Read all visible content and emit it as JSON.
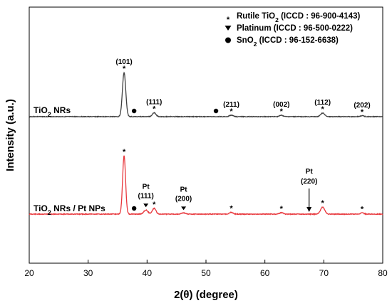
{
  "chart_data": {
    "type": "line",
    "xlabel": "2(θ) (degree)",
    "ylabel": "Intensity (a.u.)",
    "xlim": [
      20,
      80
    ],
    "x_ticks": [
      "20",
      "30",
      "40",
      "50",
      "60",
      "70",
      "80"
    ],
    "legend": {
      "placement": "top-right",
      "entries": [
        {
          "marker": "star",
          "text": "Rutile TiO",
          "sub": "2",
          "text_after": " (ICCD : 96-900-4143)"
        },
        {
          "marker": "triangle-down",
          "text": "Platinum (ICCD : 96-500-0222)",
          "sub": "",
          "text_after": ""
        },
        {
          "marker": "circle",
          "text": "SnO",
          "sub": "2",
          "text_after": " (ICCD : 96-152-6638)"
        }
      ]
    },
    "series": [
      {
        "name_main": "TiO",
        "name_sub": "2",
        "name_after": " NRs",
        "color": "#404040",
        "baseline": 0.0,
        "peaks": [
          {
            "x": 36.1,
            "h": 1.0,
            "w": 0.28
          },
          {
            "x": 41.2,
            "h": 0.09,
            "w": 0.3
          },
          {
            "x": 54.3,
            "h": 0.035,
            "w": 0.3
          },
          {
            "x": 62.8,
            "h": 0.03,
            "w": 0.3
          },
          {
            "x": 69.8,
            "h": 0.08,
            "w": 0.35
          },
          {
            "x": 76.5,
            "h": 0.02,
            "w": 0.3
          }
        ],
        "annotations": [
          {
            "x": 36.1,
            "phase": "rutile",
            "label": "(101)"
          },
          {
            "x": 41.2,
            "phase": "rutile",
            "label": "(111)"
          },
          {
            "x": 54.3,
            "phase": "rutile",
            "label": "(211)"
          },
          {
            "x": 62.8,
            "phase": "rutile",
            "label": "(002)"
          },
          {
            "x": 69.8,
            "phase": "rutile",
            "label": "(112)"
          },
          {
            "x": 76.5,
            "phase": "rutile",
            "label": "(202)"
          },
          {
            "x": 37.8,
            "phase": "sno2",
            "label": ""
          },
          {
            "x": 51.7,
            "phase": "sno2",
            "label": ""
          }
        ]
      },
      {
        "name_main": "TiO",
        "name_sub": "2",
        "name_after": " NRs / Pt NPs",
        "color": "#e8383d",
        "baseline": 0.0,
        "peaks": [
          {
            "x": 36.1,
            "h": 1.0,
            "w": 0.25
          },
          {
            "x": 39.8,
            "h": 0.07,
            "w": 0.35
          },
          {
            "x": 41.2,
            "h": 0.1,
            "w": 0.3
          },
          {
            "x": 46.2,
            "h": 0.02,
            "w": 0.35
          },
          {
            "x": 54.3,
            "h": 0.03,
            "w": 0.3
          },
          {
            "x": 62.8,
            "h": 0.025,
            "w": 0.3
          },
          {
            "x": 69.8,
            "h": 0.12,
            "w": 0.35
          },
          {
            "x": 76.5,
            "h": 0.02,
            "w": 0.3
          }
        ],
        "annotations": [
          {
            "x": 36.1,
            "phase": "rutile",
            "label": ""
          },
          {
            "x": 41.2,
            "phase": "rutile",
            "label": ""
          },
          {
            "x": 54.3,
            "phase": "rutile",
            "label": ""
          },
          {
            "x": 62.8,
            "phase": "rutile",
            "label": ""
          },
          {
            "x": 69.8,
            "phase": "rutile",
            "label": ""
          },
          {
            "x": 76.5,
            "phase": "rutile",
            "label": ""
          },
          {
            "x": 37.8,
            "phase": "sno2",
            "label": ""
          },
          {
            "x": 39.8,
            "phase": "pt",
            "label": "Pt (111)"
          },
          {
            "x": 46.2,
            "phase": "pt",
            "label": "Pt (200)"
          },
          {
            "x": 67.5,
            "phase": "pt-arrow",
            "label": "Pt (220)"
          }
        ]
      }
    ]
  }
}
